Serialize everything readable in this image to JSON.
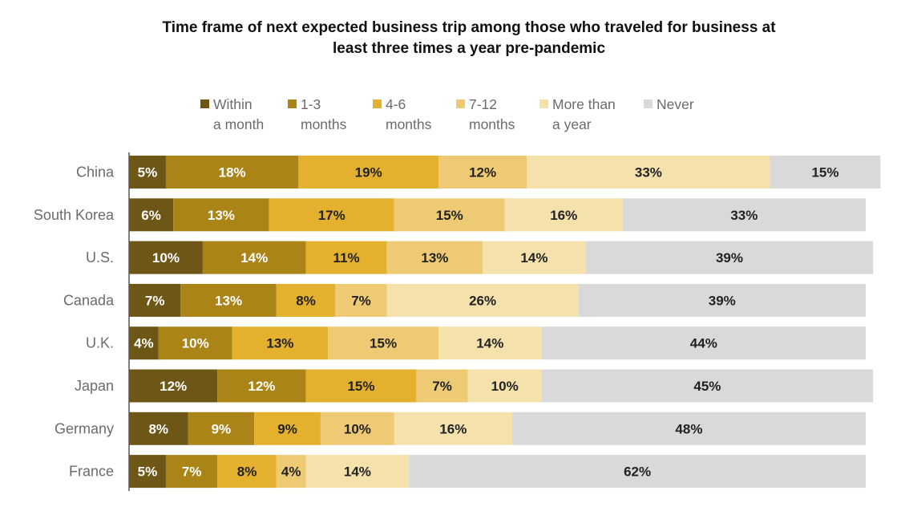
{
  "chart_data": {
    "type": "bar",
    "orientation": "horizontal-stacked",
    "title_lines": [
      "Time frame of next expected business trip among those who traveled for business at",
      "least three times a year pre-pandemic"
    ],
    "categories": [
      "China",
      "South Korea",
      "U.S.",
      "Canada",
      "U.K.",
      "Japan",
      "Germany",
      "France"
    ],
    "series": [
      {
        "name": "Within a month",
        "legend_lines": [
          "Within",
          "a month"
        ],
        "color": "#6e5716",
        "label_color": "#ffffff",
        "values": [
          5,
          6,
          10,
          7,
          4,
          12,
          8,
          5
        ]
      },
      {
        "name": "1-3 months",
        "legend_lines": [
          "1-3",
          "months"
        ],
        "color": "#ab8417",
        "label_color": "#ffffff",
        "values": [
          18,
          13,
          14,
          13,
          10,
          12,
          9,
          7
        ]
      },
      {
        "name": "4-6 months",
        "legend_lines": [
          "4-6",
          "months"
        ],
        "color": "#e4b12e",
        "label_color": "#222222",
        "values": [
          19,
          17,
          11,
          8,
          13,
          15,
          9,
          8
        ]
      },
      {
        "name": "7-12 months",
        "legend_lines": [
          "7-12",
          "months"
        ],
        "color": "#eeca74",
        "label_color": "#222222",
        "values": [
          12,
          15,
          13,
          7,
          15,
          7,
          10,
          4
        ]
      },
      {
        "name": "More than a year",
        "legend_lines": [
          "More than",
          "a year"
        ],
        "color": "#f4e1ab",
        "label_color": "#222222",
        "values": [
          33,
          16,
          14,
          26,
          14,
          10,
          16,
          14
        ]
      },
      {
        "name": "Never",
        "legend_lines": [
          "Never",
          ""
        ],
        "color": "#d9d9d9",
        "label_color": "#222222",
        "values": [
          15,
          33,
          39,
          39,
          44,
          45,
          48,
          62
        ]
      }
    ],
    "value_suffix": "%",
    "xlim": [
      0,
      100
    ],
    "legend_position": "top"
  }
}
